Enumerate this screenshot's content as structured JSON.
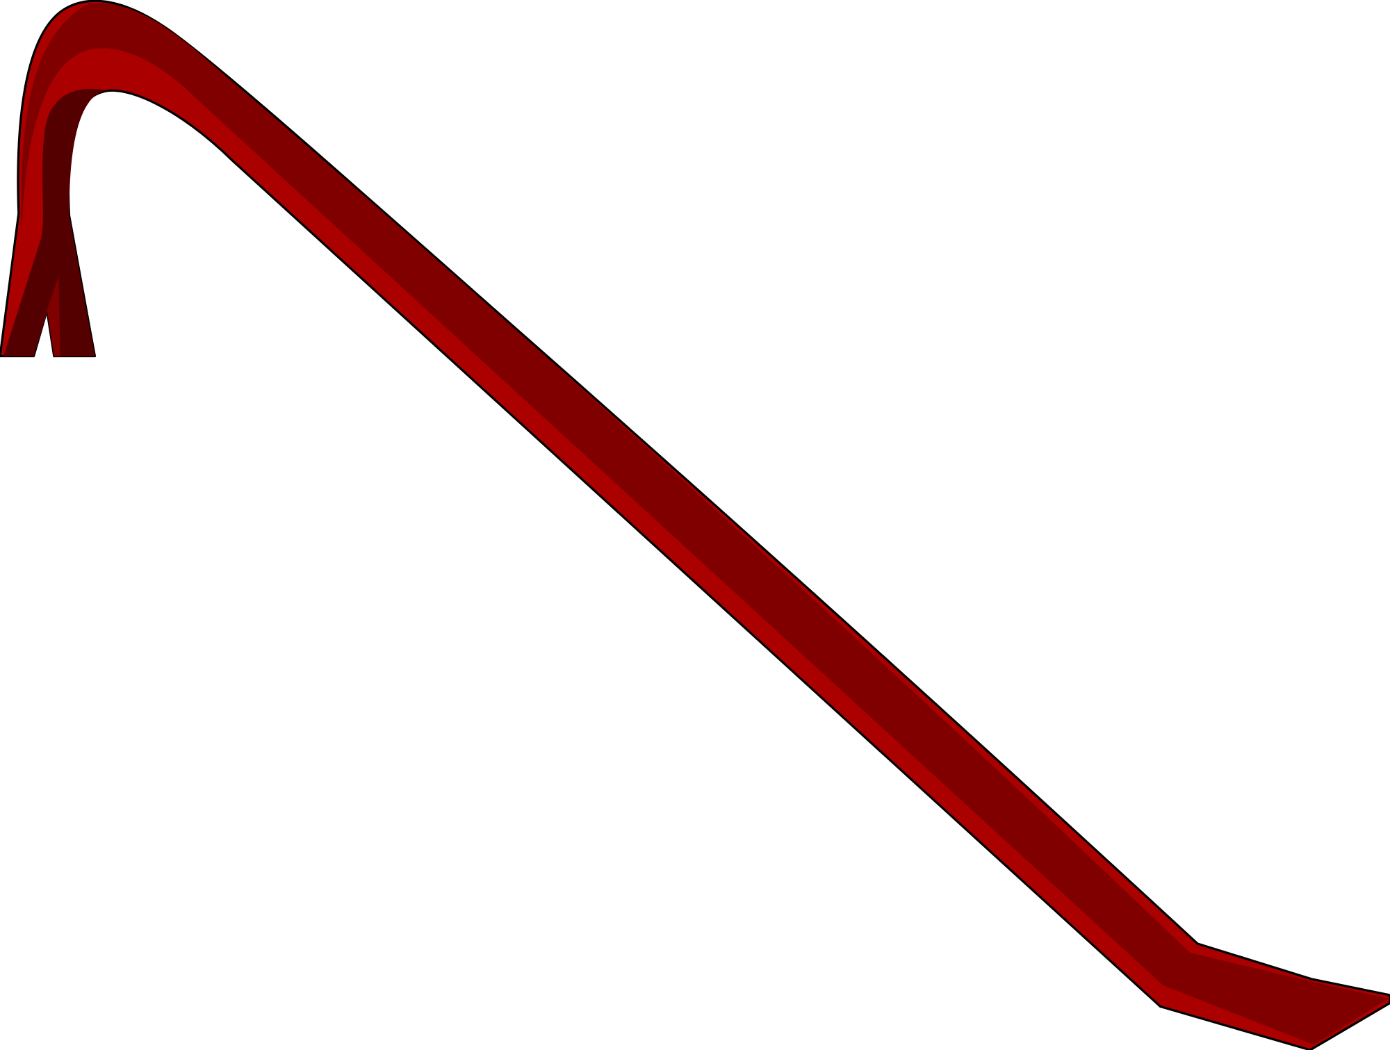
{
  "illustration": {
    "subject": "crowbar",
    "colors": {
      "outline": "#000000",
      "body": "#aa0000",
      "band": "#800000",
      "shadow": "#550000",
      "background": "#ffffff"
    }
  }
}
